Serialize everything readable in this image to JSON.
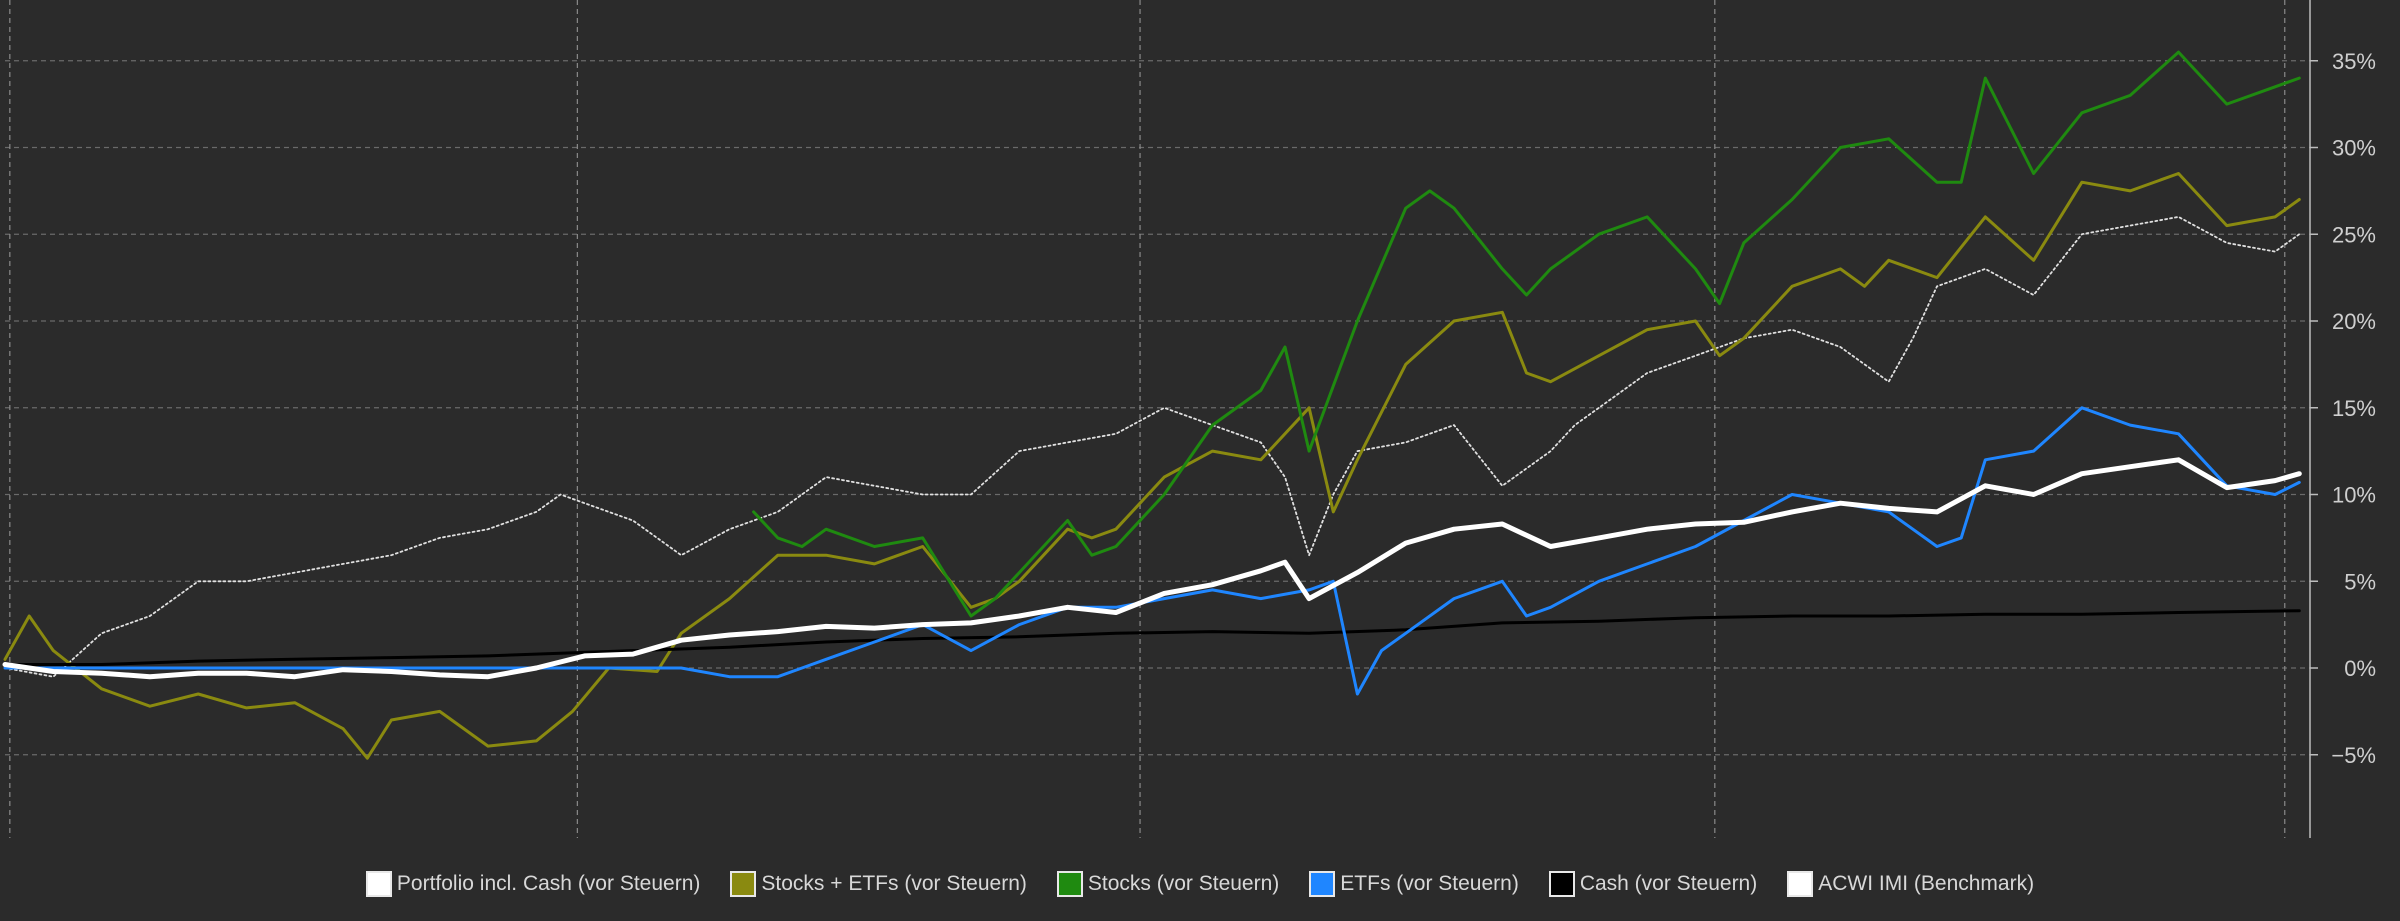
{
  "chart_data": {
    "type": "line",
    "title": "",
    "xlabel": "",
    "ylabel": "",
    "ylim": [
      -8,
      39
    ],
    "y_ticks": [
      35,
      30,
      25,
      20,
      15,
      10,
      5,
      0,
      -5
    ],
    "y_tick_format": "%",
    "grid": true,
    "legend_position": "bottom-center",
    "x_range": [
      0,
      100
    ],
    "x_gridlines": [
      0.2,
      23.7,
      47.0,
      70.8,
      94.4
    ],
    "series": [
      {
        "name": "Portfolio incl. Cash (vor Steuern)",
        "color": "#ffffff",
        "style": "thick",
        "x": [
          0,
          2,
          4,
          6,
          8,
          10,
          12,
          14,
          16,
          18,
          20,
          22,
          24,
          26,
          28,
          30,
          32,
          34,
          36,
          38,
          40,
          42,
          44,
          46,
          48,
          50,
          52,
          53,
          54,
          56,
          58,
          60,
          62,
          64,
          66,
          68,
          70,
          72,
          74,
          76,
          78,
          80,
          82,
          84,
          86,
          88,
          90,
          92,
          94,
          95
        ],
        "y": [
          0.2,
          -0.2,
          -0.3,
          -0.5,
          -0.3,
          -0.3,
          -0.5,
          -0.1,
          -0.2,
          -0.4,
          -0.5,
          0.0,
          0.7,
          0.8,
          1.6,
          1.9,
          2.1,
          2.4,
          2.3,
          2.5,
          2.6,
          3.0,
          3.5,
          3.2,
          4.3,
          4.8,
          5.6,
          6.1,
          4.0,
          5.5,
          7.2,
          8.0,
          8.3,
          7.0,
          7.5,
          8.0,
          8.3,
          8.4,
          9.0,
          9.5,
          9.2,
          9.0,
          10.5,
          10.0,
          11.2,
          11.6,
          12.0,
          10.4,
          10.8,
          11.2
        ]
      },
      {
        "name": "Stocks + ETFs (vor Steuern)",
        "color": "#8a8a10",
        "style": "normal",
        "x": [
          0,
          1,
          2,
          4,
          6,
          8,
          10,
          12,
          14,
          15,
          16,
          18,
          20,
          22,
          23.5,
          25,
          27,
          28,
          30,
          32,
          34,
          36,
          38,
          40,
          41,
          42,
          44,
          45,
          46,
          48,
          50,
          52,
          54,
          55,
          56,
          58,
          60,
          62,
          63,
          64,
          66,
          68,
          70,
          71,
          72,
          74,
          76,
          77,
          78,
          80,
          82,
          84,
          86,
          88,
          90,
          92,
          94,
          95
        ],
        "y": [
          0.5,
          3.0,
          1.0,
          -1.2,
          -2.2,
          -1.5,
          -2.3,
          -2.0,
          -3.5,
          -5.2,
          -3.0,
          -2.5,
          -4.5,
          -4.2,
          -2.5,
          0.0,
          -0.2,
          2.0,
          4.0,
          6.5,
          6.5,
          6.0,
          7.0,
          3.5,
          4.0,
          5.0,
          8.0,
          7.5,
          8.0,
          11.0,
          12.5,
          12.0,
          15.0,
          9.0,
          12.0,
          17.5,
          20.0,
          20.5,
          17.0,
          16.5,
          18.0,
          19.5,
          20.0,
          18.0,
          19.0,
          22.0,
          23.0,
          22.0,
          23.5,
          22.5,
          26.0,
          23.5,
          28.0,
          27.5,
          28.5,
          25.5,
          26.0,
          27.0
        ]
      },
      {
        "name": "Stocks (vor Steuern)",
        "color": "#1f8a10",
        "style": "normal",
        "x": [
          31,
          32,
          33,
          34,
          36,
          38,
          40,
          41,
          42,
          44,
          45,
          46,
          48,
          50,
          52,
          53,
          54,
          56,
          58,
          59,
          60,
          62,
          63,
          64,
          66,
          68,
          70,
          71,
          72,
          74,
          76,
          78,
          80,
          81,
          82,
          84,
          86,
          88,
          90,
          92,
          94,
          95
        ],
        "y": [
          9.0,
          7.5,
          7.0,
          8.0,
          7.0,
          7.5,
          3.0,
          4.0,
          5.5,
          8.5,
          6.5,
          7.0,
          10.0,
          14.0,
          16.0,
          18.5,
          12.5,
          20.0,
          26.5,
          27.5,
          26.5,
          23.0,
          21.5,
          23.0,
          25.0,
          26.0,
          23.0,
          21.0,
          24.5,
          27.0,
          30.0,
          30.5,
          28.0,
          28.0,
          34.0,
          28.5,
          32.0,
          33.0,
          35.5,
          32.5,
          33.5,
          34.0
        ]
      },
      {
        "name": "ETFs (vor Steuern)",
        "color": "#1f86ff",
        "style": "normal",
        "x": [
          0,
          4,
          8,
          12,
          16,
          20,
          24,
          28,
          30,
          32,
          33,
          34,
          36,
          38,
          40,
          42,
          44,
          46,
          48,
          50,
          52,
          54,
          55,
          56,
          57,
          58,
          60,
          62,
          63,
          64,
          66,
          68,
          70,
          72,
          74,
          76,
          78,
          80,
          81,
          82,
          84,
          86,
          88,
          90,
          92,
          94,
          95
        ],
        "y": [
          0,
          0,
          0,
          0,
          0,
          0,
          0,
          0,
          -0.5,
          -0.5,
          0,
          0.5,
          1.5,
          2.5,
          1.0,
          2.5,
          3.5,
          3.5,
          4.0,
          4.5,
          4.0,
          4.5,
          5.0,
          -1.5,
          1.0,
          2.0,
          4.0,
          5.0,
          3.0,
          3.5,
          5.0,
          6.0,
          7.0,
          8.5,
          10.0,
          9.5,
          9.0,
          7.0,
          7.5,
          12.0,
          12.5,
          15.0,
          14.0,
          13.5,
          10.5,
          10.0,
          10.7
        ]
      },
      {
        "name": "Cash (vor Steuern)",
        "color": "#000000",
        "style": "normal",
        "x": [
          0,
          4,
          8,
          12,
          16,
          20,
          24,
          30,
          34,
          38,
          42,
          46,
          50,
          54,
          58,
          62,
          66,
          70,
          74,
          78,
          82,
          86,
          90,
          95
        ],
        "y": [
          0.2,
          0.2,
          0.4,
          0.5,
          0.6,
          0.7,
          0.9,
          1.2,
          1.5,
          1.7,
          1.8,
          2.0,
          2.1,
          2.0,
          2.2,
          2.6,
          2.7,
          2.9,
          3.0,
          3.0,
          3.1,
          3.1,
          3.2,
          3.3
        ]
      },
      {
        "name": "ACWI IMI (Benchmark)",
        "color": "#e0e0e0",
        "style": "dotted",
        "x": [
          0,
          2,
          4,
          6,
          8,
          10,
          12,
          14,
          16,
          18,
          20,
          22,
          23,
          24,
          26,
          28,
          30,
          32,
          34,
          36,
          38,
          40,
          42,
          44,
          46,
          48,
          50,
          52,
          53,
          54,
          55,
          56,
          58,
          60,
          62,
          64,
          65,
          66,
          68,
          70,
          72,
          74,
          76,
          78,
          79,
          80,
          82,
          84,
          86,
          88,
          90,
          92,
          94,
          95
        ],
        "y": [
          0.0,
          -0.5,
          2.0,
          3.0,
          5.0,
          5.0,
          5.5,
          6.0,
          6.5,
          7.5,
          8.0,
          9.0,
          10.0,
          9.5,
          8.5,
          6.5,
          8.0,
          9.0,
          11.0,
          10.5,
          10.0,
          10.0,
          12.5,
          13.0,
          13.5,
          15.0,
          14.0,
          13.0,
          11.0,
          6.5,
          10.0,
          12.5,
          13.0,
          14.0,
          10.5,
          12.5,
          14.0,
          15.0,
          17.0,
          18.0,
          19.0,
          19.5,
          18.5,
          16.5,
          19.0,
          22.0,
          23.0,
          21.5,
          25.0,
          25.5,
          26.0,
          24.5,
          24.0,
          25.0
        ]
      }
    ]
  }
}
